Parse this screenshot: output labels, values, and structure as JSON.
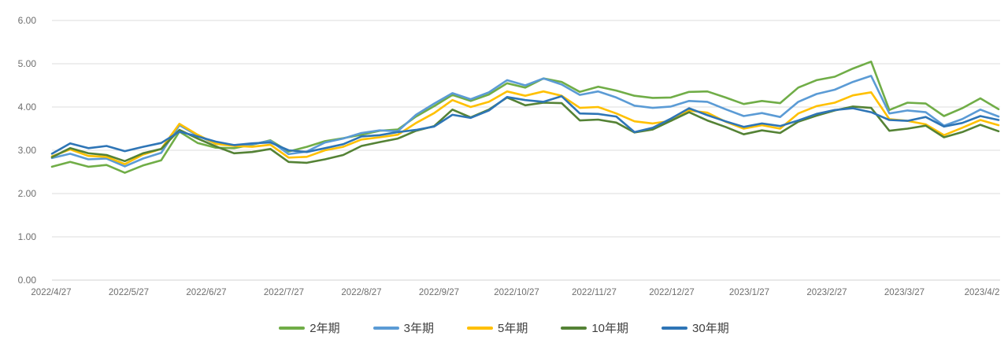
{
  "chart_data": {
    "type": "line",
    "title": "",
    "grid": true,
    "legend_position": "bottom",
    "y_axis": {
      "label": "",
      "min": 0,
      "max": 6,
      "tick_labels": [
        "0.00",
        "1.00",
        "2.00",
        "3.00",
        "4.00",
        "5.00",
        "6.00"
      ]
    },
    "x_axis": {
      "label": "",
      "tick_labels": [
        "2022/4/27",
        "2022/5/27",
        "2022/6/27",
        "2022/7/27",
        "2022/8/27",
        "2022/9/27",
        "2022/10/27",
        "2022/11/27",
        "2022/12/27",
        "2023/1/27",
        "2023/2/27",
        "2023/3/27",
        "2023/4/2"
      ]
    },
    "sample_dates": [
      "2022/4/27",
      "2022/5/4",
      "2022/5/11",
      "2022/5/18",
      "2022/5/25",
      "2022/6/1",
      "2022/6/8",
      "2022/6/15",
      "2022/6/22",
      "2022/6/29",
      "2022/7/6",
      "2022/7/13",
      "2022/7/20",
      "2022/7/27",
      "2022/8/3",
      "2022/8/10",
      "2022/8/17",
      "2022/8/24",
      "2022/8/31",
      "2022/9/7",
      "2022/9/14",
      "2022/9/21",
      "2022/9/28",
      "2022/10/5",
      "2022/10/12",
      "2022/10/19",
      "2022/10/26",
      "2022/11/2",
      "2022/11/9",
      "2022/11/16",
      "2022/11/23",
      "2022/11/30",
      "2022/12/7",
      "2022/12/14",
      "2022/12/21",
      "2022/12/28",
      "2023/1/4",
      "2023/1/11",
      "2023/1/18",
      "2023/1/25",
      "2023/2/1",
      "2023/2/8",
      "2023/2/15",
      "2023/2/22",
      "2023/3/1",
      "2023/3/8",
      "2023/3/15",
      "2023/3/22",
      "2023/3/29",
      "2023/4/5",
      "2023/4/12",
      "2023/4/19",
      "2023/4/26"
    ],
    "series": [
      {
        "id": "2y",
        "name": "2年期",
        "color": "#70AD47",
        "values": [
          2.62,
          2.73,
          2.62,
          2.66,
          2.48,
          2.65,
          2.77,
          3.43,
          3.17,
          3.06,
          3.05,
          3.13,
          3.23,
          2.97,
          3.08,
          3.21,
          3.28,
          3.36,
          3.45,
          3.48,
          3.78,
          4.02,
          4.28,
          4.14,
          4.29,
          4.55,
          4.45,
          4.66,
          4.58,
          4.35,
          4.47,
          4.38,
          4.26,
          4.21,
          4.22,
          4.35,
          4.36,
          4.22,
          4.07,
          4.14,
          4.09,
          4.45,
          4.62,
          4.7,
          4.89,
          5.05,
          3.93,
          4.1,
          4.08,
          3.79,
          3.97,
          4.2,
          3.95
        ]
      },
      {
        "id": "3y",
        "name": "3年期",
        "color": "#5B9BD5",
        "values": [
          2.82,
          2.92,
          2.79,
          2.81,
          2.63,
          2.81,
          2.94,
          3.58,
          3.34,
          3.15,
          3.12,
          3.14,
          3.22,
          2.91,
          2.97,
          3.18,
          3.27,
          3.4,
          3.46,
          3.44,
          3.82,
          4.08,
          4.32,
          4.18,
          4.34,
          4.62,
          4.5,
          4.66,
          4.52,
          4.28,
          4.36,
          4.22,
          4.03,
          3.98,
          4.01,
          4.14,
          4.12,
          3.95,
          3.79,
          3.86,
          3.77,
          4.12,
          4.3,
          4.4,
          4.58,
          4.72,
          3.85,
          3.92,
          3.88,
          3.57,
          3.72,
          3.94,
          3.78
        ]
      },
      {
        "id": "5y",
        "name": "5年期",
        "color": "#FFC000",
        "values": [
          2.86,
          3.02,
          2.87,
          2.85,
          2.68,
          2.9,
          3.03,
          3.61,
          3.36,
          3.15,
          3.1,
          3.08,
          3.13,
          2.83,
          2.85,
          3.0,
          3.08,
          3.25,
          3.3,
          3.36,
          3.63,
          3.86,
          4.16,
          4.0,
          4.12,
          4.36,
          4.26,
          4.36,
          4.26,
          3.98,
          4.0,
          3.85,
          3.67,
          3.62,
          3.68,
          3.92,
          3.87,
          3.66,
          3.5,
          3.58,
          3.5,
          3.85,
          4.02,
          4.1,
          4.27,
          4.34,
          3.72,
          3.68,
          3.6,
          3.35,
          3.52,
          3.7,
          3.58
        ]
      },
      {
        "id": "10y",
        "name": "10年期",
        "color": "#548235",
        "values": [
          2.84,
          3.05,
          2.93,
          2.89,
          2.75,
          2.93,
          3.03,
          3.47,
          3.27,
          3.09,
          2.93,
          2.96,
          3.03,
          2.73,
          2.71,
          2.79,
          2.89,
          3.1,
          3.19,
          3.27,
          3.45,
          3.56,
          3.94,
          3.76,
          3.94,
          4.22,
          4.04,
          4.1,
          4.09,
          3.69,
          3.71,
          3.64,
          3.41,
          3.48,
          3.68,
          3.88,
          3.69,
          3.54,
          3.37,
          3.46,
          3.4,
          3.66,
          3.8,
          3.92,
          4.01,
          3.98,
          3.45,
          3.5,
          3.57,
          3.3,
          3.42,
          3.59,
          3.44
        ]
      },
      {
        "id": "30y",
        "name": "30年期",
        "color": "#2E75B6",
        "values": [
          2.92,
          3.16,
          3.05,
          3.1,
          2.98,
          3.08,
          3.17,
          3.43,
          3.32,
          3.2,
          3.12,
          3.16,
          3.18,
          3.0,
          2.96,
          3.05,
          3.14,
          3.32,
          3.35,
          3.42,
          3.47,
          3.55,
          3.82,
          3.75,
          3.92,
          4.23,
          4.16,
          4.12,
          4.25,
          3.85,
          3.84,
          3.78,
          3.42,
          3.52,
          3.73,
          3.97,
          3.81,
          3.67,
          3.54,
          3.62,
          3.56,
          3.69,
          3.84,
          3.93,
          3.97,
          3.88,
          3.7,
          3.68,
          3.77,
          3.55,
          3.63,
          3.79,
          3.7
        ]
      }
    ],
    "colors": {
      "background": "#ffffff",
      "gridline": "#dcdcdc",
      "axis_label": "#6e6e6e",
      "legend_text": "#3f3f3f"
    }
  }
}
